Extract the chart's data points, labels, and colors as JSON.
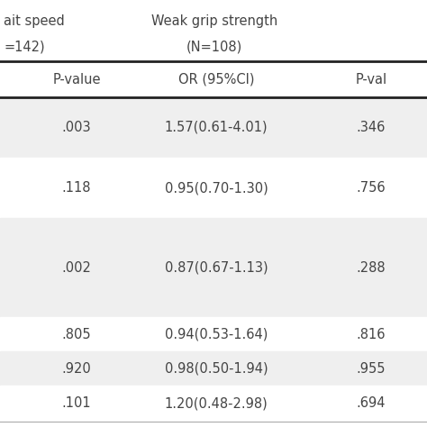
{
  "header_row1_left": "ait speed",
  "header_row1_right": "Weak grip strength",
  "header_row2_left": "=142)",
  "header_row2_right": "(N=108)",
  "col_headers": [
    "P-value",
    "OR (95%CI)",
    "P-val"
  ],
  "rows": [
    [
      ".003",
      "1.57(0.61-4.01)",
      ".346"
    ],
    [
      ".118",
      "0.95(0.70-1.30)",
      ".756"
    ],
    [
      ".002",
      "0.87(0.67-1.13)",
      ".288"
    ],
    [
      ".805",
      "0.94(0.53-1.64)",
      ".816"
    ],
    [
      ".920",
      "0.98(0.50-1.94)",
      ".955"
    ],
    [
      ".101",
      "1.20(0.48-2.98)",
      ".694"
    ]
  ],
  "row_bg_colors": [
    "#efefef",
    "#ffffff",
    "#efefef",
    "#ffffff",
    "#efefef",
    "#ffffff"
  ],
  "background": "#ffffff",
  "font_size": 10.5,
  "text_color": "#444444",
  "thick_line_color": "#222222",
  "thin_line_color": "#aaaaaa"
}
